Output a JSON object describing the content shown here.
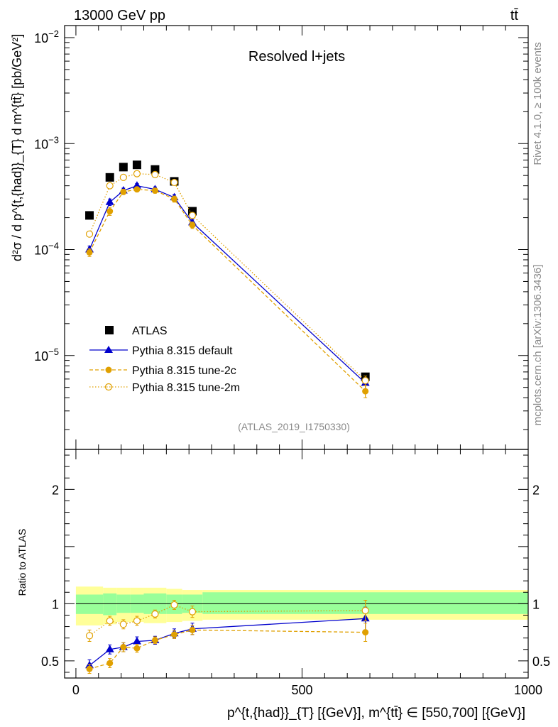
{
  "header": {
    "energy_label": "13000 GeV pp",
    "process_label": "tt̄",
    "plot_title": "Resolved l+jets",
    "side_label_top": "Rivet 4.1.0, ≥ 100k events",
    "side_label_bottom": "mcplots.cern.ch [arXiv:1306.3436]",
    "analysis_id": "(ATLAS_2019_I1750330)"
  },
  "colors": {
    "atlas": "#000000",
    "default": "#0000cc",
    "tune2c": "#e0a000",
    "tune2m": "#e0a000",
    "band_inner": "#99ff99",
    "band_outer": "#ffff99"
  },
  "chart_data": [
    {
      "type": "scatter",
      "panel": "main",
      "yscale": "log",
      "xlim": [
        -25,
        1000
      ],
      "ylim": [
        1.3e-06,
        0.013
      ],
      "ylabel": "d²σ / d p^{t,{had}}_{T} d m^{tt̄} [pb/GeV²]",
      "y_ticks": [
        {
          "value": 1e-05,
          "base": "10",
          "exp": "−5"
        },
        {
          "value": 0.0001,
          "base": "10",
          "exp": "−4"
        },
        {
          "value": 0.001,
          "base": "10",
          "exp": "−3"
        },
        {
          "value": 0.01,
          "base": "10",
          "exp": "−2"
        }
      ],
      "x": [
        30,
        75,
        105,
        135,
        175,
        217.5,
        257.5,
        640
      ],
      "series": [
        {
          "name": "ATLAS",
          "style": "square",
          "values": [
            0.00021,
            0.00048,
            0.0006,
            0.00063,
            0.00057,
            0.00044,
            0.00023,
            6.3e-06
          ]
        },
        {
          "name": "Pythia 8.315 default",
          "style": "triangle-solid",
          "values": [
            0.0001,
            0.00028,
            0.00036,
            0.0004,
            0.00037,
            0.00031,
            0.00018,
            5.5e-06
          ],
          "err": [
            8e-06,
            2e-05,
            2e-05,
            2e-05,
            2e-05,
            2e-05,
            1.2e-05,
            7e-07
          ]
        },
        {
          "name": "Pythia 8.315 tune-2c",
          "style": "circle-dashed",
          "values": [
            9.4e-05,
            0.00023,
            0.00035,
            0.00037,
            0.00036,
            0.0003,
            0.00017,
            4.6e-06
          ],
          "err": [
            8e-06,
            2e-05,
            2e-05,
            2e-05,
            2e-05,
            2e-05,
            1.2e-05,
            6e-07
          ]
        },
        {
          "name": "Pythia 8.315 tune-2m",
          "style": "circle-open-dotted",
          "values": [
            0.00014,
            0.0004,
            0.00048,
            0.00052,
            0.00051,
            0.00043,
            0.00021,
            5.8e-06
          ],
          "err": [
            8e-06,
            2e-05,
            2e-05,
            2e-05,
            2e-05,
            2e-05,
            1.2e-05,
            6e-07
          ]
        }
      ]
    },
    {
      "type": "scatter",
      "panel": "ratio",
      "xlim": [
        -25,
        1000
      ],
      "ylim": [
        0.35,
        2.35
      ],
      "ylabel": "Ratio to ATLAS",
      "xlabel": "p^{t,{had}}_{T} [{GeV}], m^{tt̄} ∈ [550,700] [{GeV}]",
      "x_ticks": [
        "0",
        "500",
        "1000"
      ],
      "y_ticks": [
        "0.5",
        "1",
        "2"
      ],
      "reference": 1,
      "bins": [
        [
          0,
          60
        ],
        [
          60,
          90
        ],
        [
          90,
          120
        ],
        [
          120,
          150
        ],
        [
          150,
          200
        ],
        [
          200,
          235
        ],
        [
          235,
          280
        ],
        [
          280,
          1000
        ]
      ],
      "band_inner": [
        [
          0.91,
          1.08
        ],
        [
          0.9,
          1.09
        ],
        [
          0.92,
          1.08
        ],
        [
          0.92,
          1.08
        ],
        [
          0.91,
          1.09
        ],
        [
          0.91,
          1.08
        ],
        [
          0.92,
          1.08
        ],
        [
          0.91,
          1.1
        ]
      ],
      "band_outer": [
        [
          0.81,
          1.15
        ],
        [
          0.82,
          1.14
        ],
        [
          0.84,
          1.14
        ],
        [
          0.84,
          1.14
        ],
        [
          0.83,
          1.14
        ],
        [
          0.84,
          1.13
        ],
        [
          0.85,
          1.12
        ],
        [
          0.86,
          1.12
        ]
      ],
      "x": [
        30,
        75,
        105,
        135,
        175,
        217.5,
        257.5,
        640
      ],
      "series": [
        {
          "name": "Pythia 8.315 default",
          "style": "triangle-solid",
          "values": [
            0.46,
            0.6,
            0.62,
            0.67,
            0.68,
            0.74,
            0.78,
            0.87
          ],
          "err": [
            0.05,
            0.04,
            0.04,
            0.04,
            0.035,
            0.04,
            0.05,
            0.1
          ]
        },
        {
          "name": "Pythia 8.315 tune-2c",
          "style": "circle-dashed",
          "values": [
            0.43,
            0.48,
            0.62,
            0.61,
            0.68,
            0.73,
            0.77,
            0.75
          ],
          "err": [
            0.04,
            0.04,
            0.04,
            0.035,
            0.03,
            0.035,
            0.04,
            0.08
          ]
        },
        {
          "name": "Pythia 8.315 tune-2m",
          "style": "circle-open-dotted",
          "values": [
            0.72,
            0.85,
            0.82,
            0.85,
            0.91,
            0.99,
            0.93,
            0.94
          ],
          "err": [
            0.05,
            0.04,
            0.04,
            0.04,
            0.035,
            0.04,
            0.05,
            0.09
          ]
        }
      ]
    }
  ]
}
